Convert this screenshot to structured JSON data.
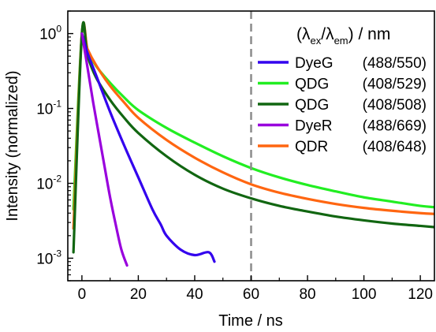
{
  "chart_data": {
    "type": "line",
    "title": "",
    "xlabel": "Time / ns",
    "ylabel": "Intensity (normalized)",
    "xlim": [
      -5,
      125
    ],
    "ylim": [
      0.0005,
      2
    ],
    "y_scale": "log",
    "grid": false,
    "x_ticks": [
      {
        "value": 0,
        "label": "0"
      },
      {
        "value": 20,
        "label": "20"
      },
      {
        "value": 40,
        "label": "40"
      },
      {
        "value": 60,
        "label": "60"
      },
      {
        "value": 80,
        "label": "80"
      },
      {
        "value": 100,
        "label": "100"
      },
      {
        "value": 120,
        "label": "120"
      }
    ],
    "y_ticks": [
      {
        "value": 0.001,
        "base": "10",
        "exp": "-3"
      },
      {
        "value": 0.01,
        "base": "10",
        "exp": "-2"
      },
      {
        "value": 0.1,
        "base": "10",
        "exp": "-1"
      },
      {
        "value": 1,
        "base": "10",
        "exp": "0"
      }
    ],
    "annotations": [
      {
        "type": "vertical-dashed-line",
        "x": 60,
        "color": "#8c8c8c"
      }
    ],
    "legend": {
      "placement": "top-right",
      "title_parts": [
        "(λ",
        "ex",
        "/λ",
        "em",
        ") / nm"
      ]
    },
    "series": [
      {
        "name": "DyeG",
        "legend_value": "(488/550)",
        "color": "#3300ee",
        "x": [
          0,
          2,
          5,
          10,
          15,
          20,
          25,
          28,
          30,
          35,
          40,
          45,
          47
        ],
        "y": [
          1.0,
          0.55,
          0.28,
          0.09,
          0.032,
          0.012,
          0.0045,
          0.0028,
          0.002,
          0.0013,
          0.0011,
          0.0012,
          0.0009
        ]
      },
      {
        "name": "QDG",
        "legend_value": "(408/529)",
        "color": "#22ee22",
        "x": [
          -3,
          0,
          2,
          5,
          10,
          15,
          20,
          30,
          40,
          50,
          60,
          70,
          80,
          90,
          100,
          110,
          120,
          125
        ],
        "y": [
          0.0045,
          1.0,
          0.6,
          0.37,
          0.22,
          0.14,
          0.095,
          0.055,
          0.035,
          0.023,
          0.016,
          0.012,
          0.0095,
          0.0078,
          0.0065,
          0.0057,
          0.005,
          0.0048
        ]
      },
      {
        "name": "QDG",
        "legend_value": "(408/508)",
        "color": "#116611",
        "x": [
          -3,
          0,
          2,
          5,
          10,
          15,
          20,
          30,
          40,
          50,
          60,
          70,
          80,
          90,
          100,
          110,
          120,
          125
        ],
        "y": [
          0.0012,
          1.0,
          0.5,
          0.26,
          0.13,
          0.075,
          0.047,
          0.023,
          0.013,
          0.0085,
          0.0063,
          0.005,
          0.0042,
          0.0036,
          0.0032,
          0.0029,
          0.0027,
          0.0026
        ]
      },
      {
        "name": "DyeR",
        "legend_value": "(488/669)",
        "color": "#9900dd",
        "x": [
          0,
          2,
          4,
          6,
          8,
          10,
          12,
          14,
          16
        ],
        "y": [
          1.0,
          0.35,
          0.12,
          0.045,
          0.017,
          0.0065,
          0.0028,
          0.0013,
          0.0008
        ]
      },
      {
        "name": "QDR",
        "legend_value": "(408/648)",
        "color": "#ff6611",
        "x": [
          -3,
          0,
          2,
          5,
          10,
          15,
          20,
          30,
          40,
          50,
          60,
          70,
          80,
          90,
          100,
          110,
          120,
          125
        ],
        "y": [
          0.0025,
          1.0,
          0.62,
          0.38,
          0.2,
          0.12,
          0.075,
          0.038,
          0.022,
          0.014,
          0.0097,
          0.0075,
          0.0062,
          0.0053,
          0.0047,
          0.0043,
          0.004,
          0.0039
        ]
      }
    ]
  }
}
